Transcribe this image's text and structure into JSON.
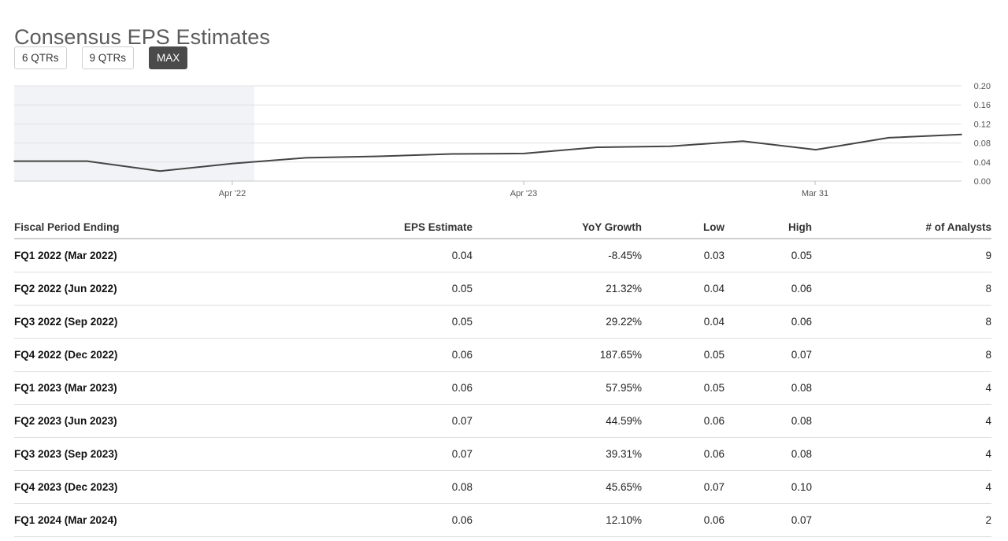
{
  "title": "Consensus EPS Estimates",
  "range_buttons": [
    {
      "label": "6 QTRs",
      "active": false
    },
    {
      "label": "9 QTRs",
      "active": false
    },
    {
      "label": "MAX",
      "active": true
    }
  ],
  "chart_data": {
    "type": "line",
    "y_ticks": [
      "0.20",
      "0.16",
      "0.12",
      "0.08",
      "0.04",
      "0.00"
    ],
    "x_ticks": [
      "Apr '22",
      "Apr '23",
      "Mar 31"
    ],
    "ylim": [
      0,
      0.2
    ],
    "series": [
      {
        "values": [
          0.042,
          0.042,
          0.021,
          0.037,
          0.049,
          0.052,
          0.057,
          0.058,
          0.071,
          0.073,
          0.084,
          0.066,
          0.091,
          0.098
        ]
      }
    ],
    "line_color": "#444444",
    "shaded_region_color": "#f2f3f6",
    "grid": true
  },
  "table": {
    "headers": [
      "Fiscal Period Ending",
      "EPS Estimate",
      "YoY Growth",
      "Low",
      "High",
      "# of Analysts"
    ],
    "rows": [
      [
        "FQ1 2022 (Mar 2022)",
        "0.04",
        "-8.45%",
        "0.03",
        "0.05",
        "9"
      ],
      [
        "FQ2 2022 (Jun 2022)",
        "0.05",
        "21.32%",
        "0.04",
        "0.06",
        "8"
      ],
      [
        "FQ3 2022 (Sep 2022)",
        "0.05",
        "29.22%",
        "0.04",
        "0.06",
        "8"
      ],
      [
        "FQ4 2022 (Dec 2022)",
        "0.06",
        "187.65%",
        "0.05",
        "0.07",
        "8"
      ],
      [
        "FQ1 2023 (Mar 2023)",
        "0.06",
        "57.95%",
        "0.05",
        "0.08",
        "4"
      ],
      [
        "FQ2 2023 (Jun 2023)",
        "0.07",
        "44.59%",
        "0.06",
        "0.08",
        "4"
      ],
      [
        "FQ3 2023 (Sep 2023)",
        "0.07",
        "39.31%",
        "0.06",
        "0.08",
        "4"
      ],
      [
        "FQ4 2023 (Dec 2023)",
        "0.08",
        "45.65%",
        "0.07",
        "0.10",
        "4"
      ],
      [
        "FQ1 2024 (Mar 2024)",
        "0.06",
        "12.10%",
        "0.06",
        "0.07",
        "2"
      ]
    ]
  }
}
